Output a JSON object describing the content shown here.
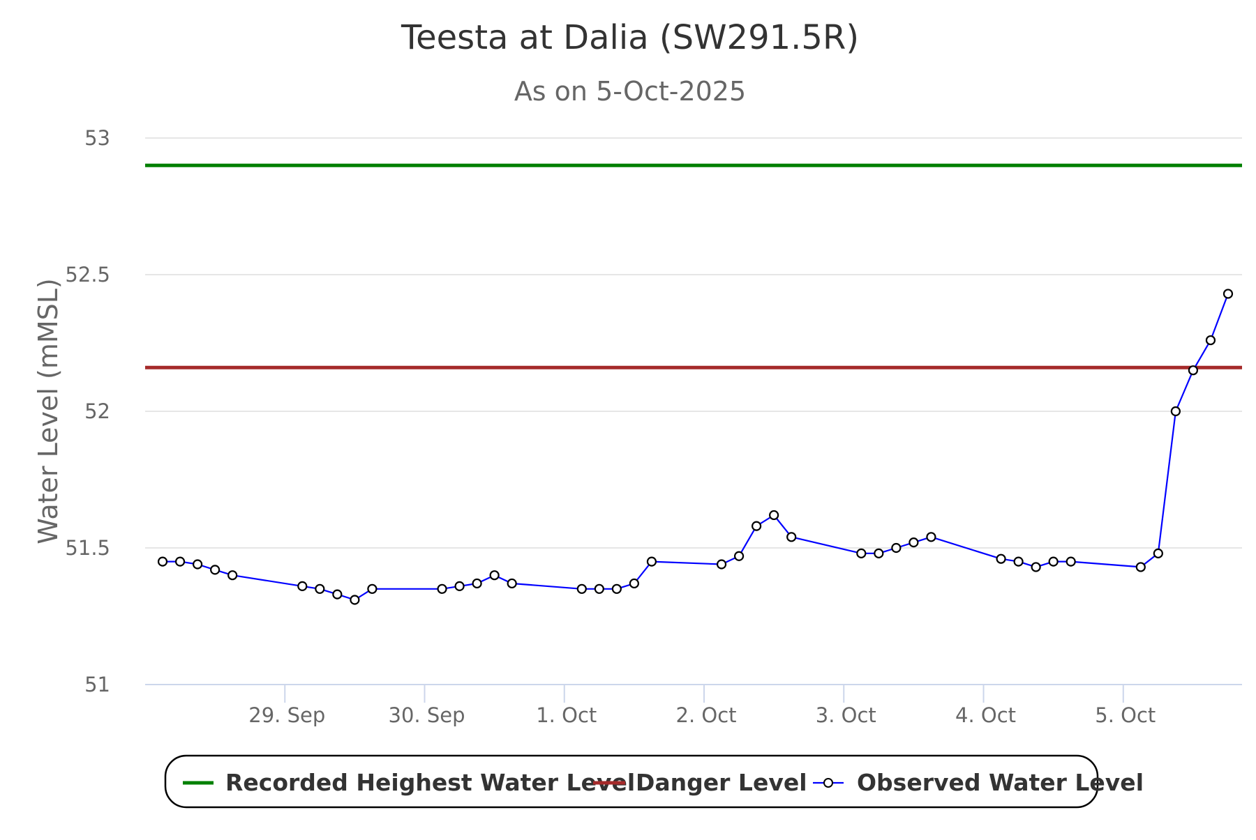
{
  "chart_data": {
    "type": "line",
    "title": "Teesta at Dalia (SW291.5R)",
    "subtitle": "As on 5-Oct-2025",
    "ylabel": "Water Level (mMSL)",
    "xlabel": "",
    "ylim": [
      51,
      53
    ],
    "yticks": [
      {
        "value": 51,
        "label": "51"
      },
      {
        "value": 51.5,
        "label": "51.5"
      },
      {
        "value": 52,
        "label": "52"
      },
      {
        "value": 52.5,
        "label": "52.5"
      },
      {
        "value": 53,
        "label": "53"
      }
    ],
    "xlim": [
      0.0,
      7.85
    ],
    "x_unit": "days since 28-Sep-2025 00:00",
    "xticks": [
      {
        "value": 1,
        "label": "29. Sep"
      },
      {
        "value": 2,
        "label": "30. Sep"
      },
      {
        "value": 3,
        "label": "1. Oct"
      },
      {
        "value": 4,
        "label": "2. Oct"
      },
      {
        "value": 5,
        "label": "3. Oct"
      },
      {
        "value": 6,
        "label": "4. Oct"
      },
      {
        "value": 7,
        "label": "5. Oct"
      }
    ],
    "grid": true,
    "legend_position": "bottom-center",
    "series": [
      {
        "name": "Recorded Heighest Water Level",
        "kind": "flat",
        "color": "#008000",
        "value": 52.9
      },
      {
        "name": "Danger Level",
        "kind": "flat",
        "color": "#a52a2a",
        "value": 52.16
      },
      {
        "name": "Observed Water Level",
        "kind": "observed",
        "color": "#0000ff",
        "x": [
          0.125,
          0.25,
          0.375,
          0.5,
          0.625,
          1.125,
          1.25,
          1.375,
          1.5,
          1.625,
          2.125,
          2.25,
          2.375,
          2.5,
          2.625,
          3.125,
          3.25,
          3.375,
          3.5,
          3.625,
          4.125,
          4.25,
          4.375,
          4.5,
          4.625,
          5.125,
          5.25,
          5.375,
          5.5,
          5.625,
          6.125,
          6.25,
          6.375,
          6.5,
          6.625,
          7.125,
          7.25,
          7.375,
          7.5,
          7.625,
          7.75
        ],
        "y": [
          51.45,
          51.45,
          51.44,
          51.42,
          51.4,
          51.36,
          51.35,
          51.33,
          51.31,
          51.35,
          51.35,
          51.36,
          51.37,
          51.4,
          51.37,
          51.35,
          51.35,
          51.35,
          51.37,
          51.45,
          51.44,
          51.47,
          51.58,
          51.62,
          51.54,
          51.48,
          51.48,
          51.5,
          51.52,
          51.54,
          51.46,
          51.45,
          51.43,
          51.45,
          51.45,
          51.43,
          51.48,
          52.0,
          52.15,
          52.26,
          52.43
        ]
      }
    ]
  }
}
